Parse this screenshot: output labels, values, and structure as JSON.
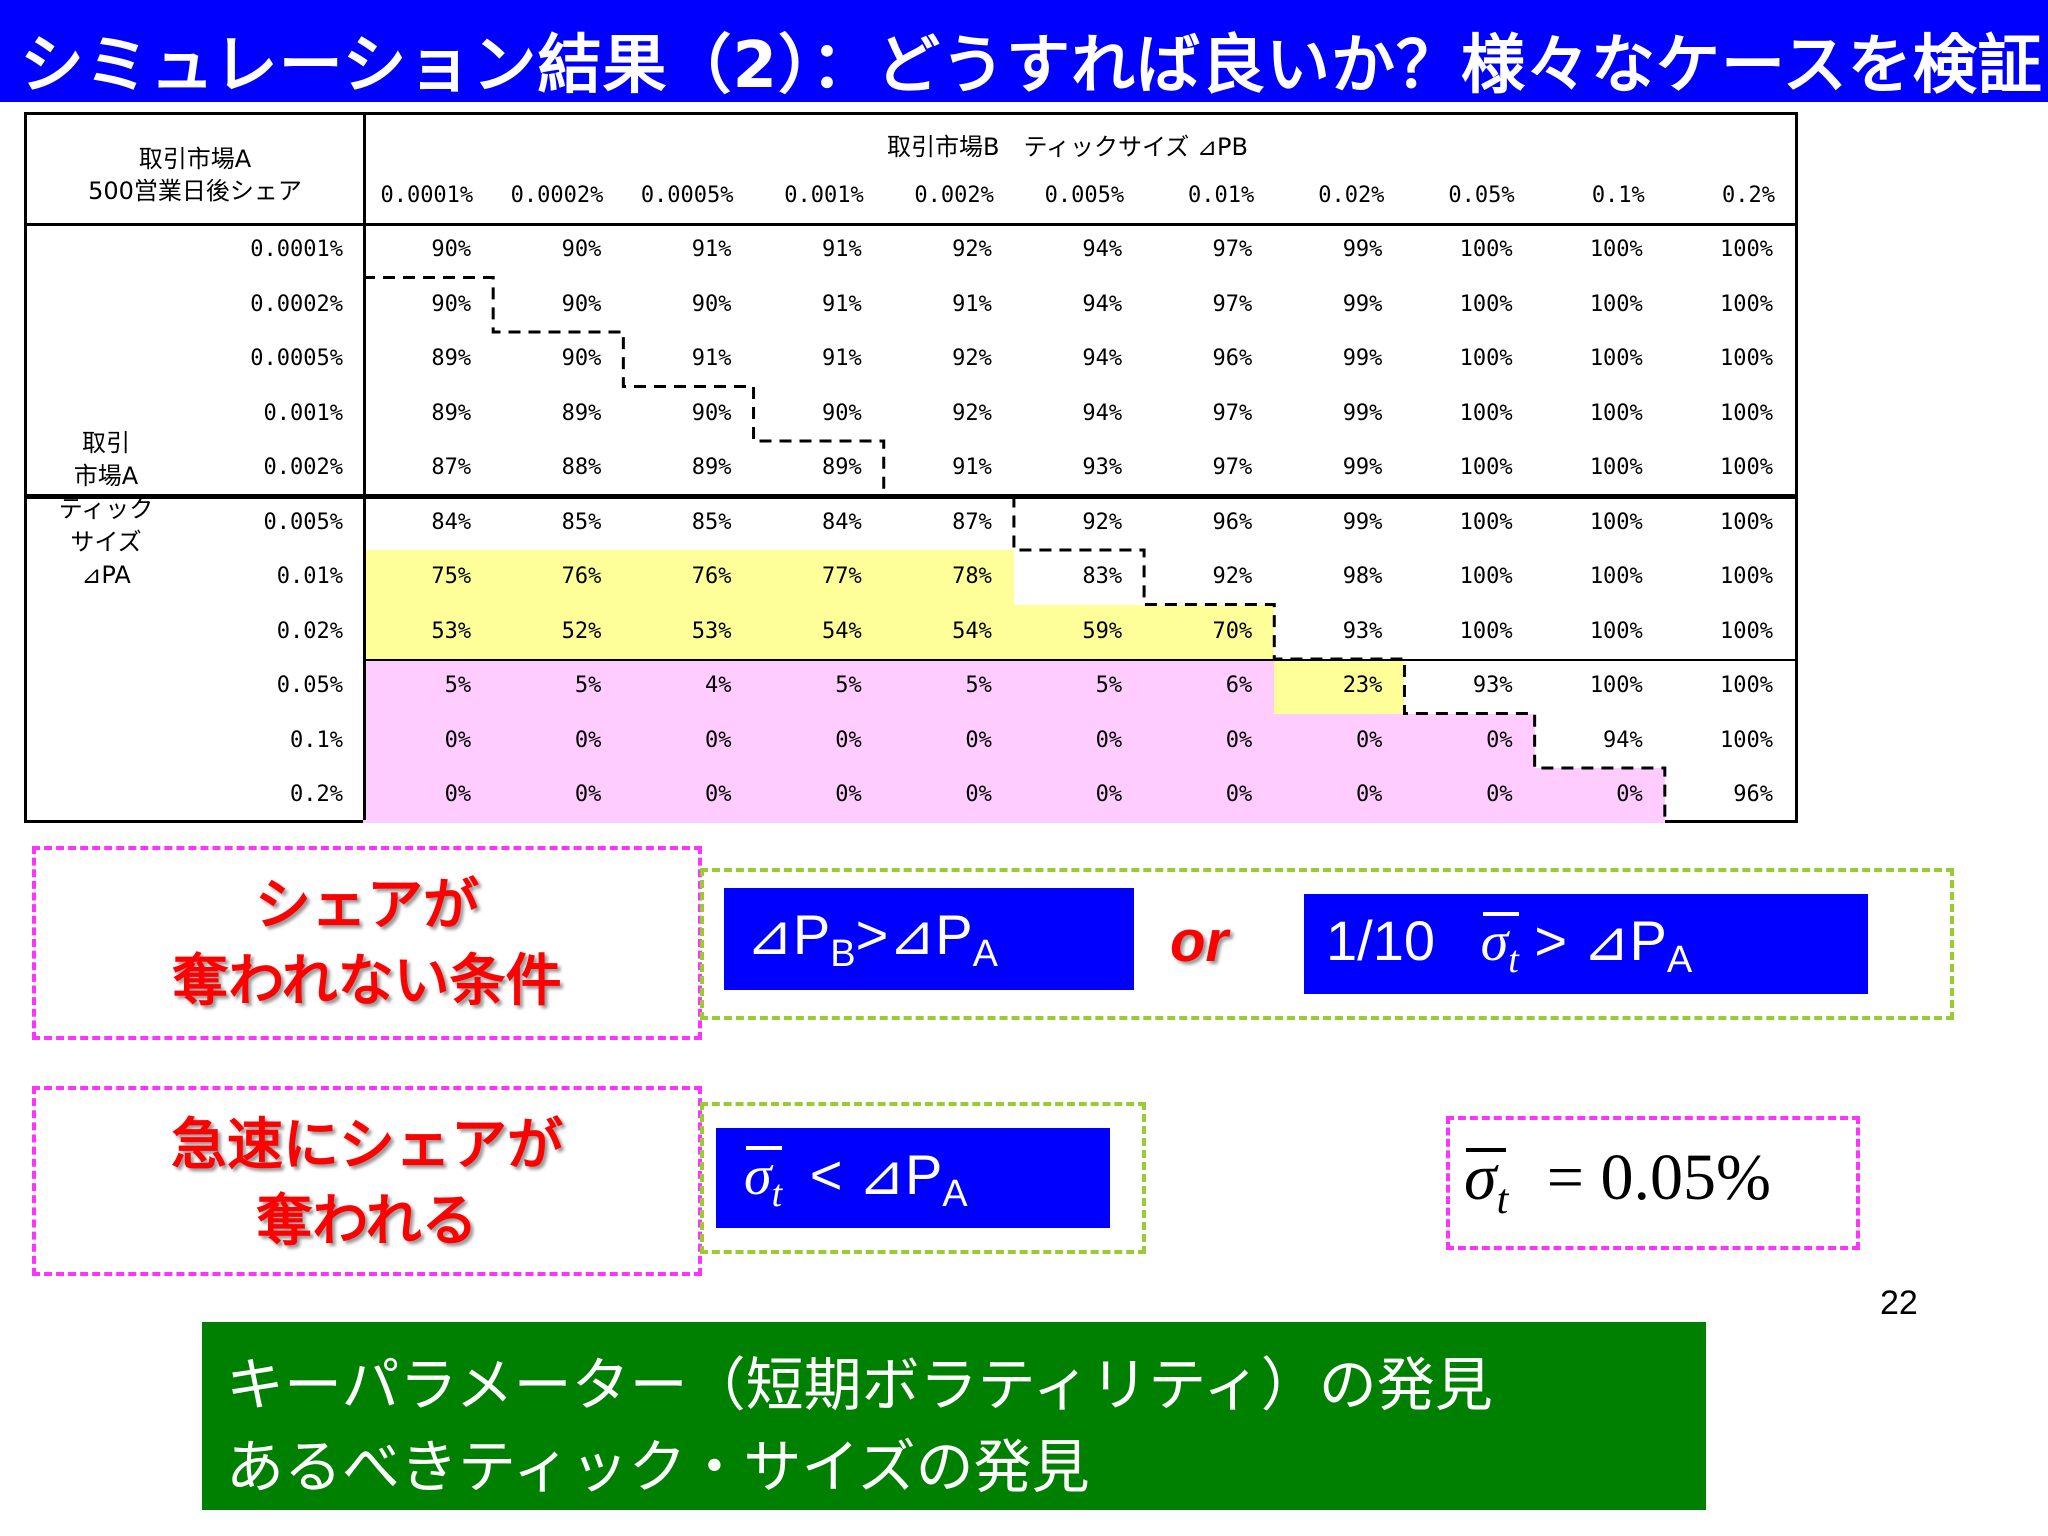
{
  "title": "シミュレーション結果（2）：どうすれば良いか？様々なケースを検証",
  "table": {
    "corner_line1": "取引市場A",
    "corner_line2": "500営業日後シェア",
    "col_group_label": "取引市場B　ティックサイズ ⊿PB",
    "row_group_label": [
      "取引",
      "市場A",
      "ティック",
      "サイズ",
      "⊿PA"
    ],
    "col_headers": [
      "0.0001%",
      "0.0002%",
      "0.0005%",
      "0.001%",
      "0.002%",
      "0.005%",
      "0.01%",
      "0.02%",
      "0.05%",
      "0.1%",
      "0.2%"
    ],
    "row_headers": [
      "0.0001%",
      "0.0002%",
      "0.0005%",
      "0.001%",
      "0.002%",
      "0.005%",
      "0.01%",
      "0.02%",
      "0.05%",
      "0.1%",
      "0.2%"
    ],
    "rows": [
      [
        "90%",
        "90%",
        "91%",
        "91%",
        "92%",
        "94%",
        "97%",
        "99%",
        "100%",
        "100%",
        "100%"
      ],
      [
        "90%",
        "90%",
        "90%",
        "91%",
        "91%",
        "94%",
        "97%",
        "99%",
        "100%",
        "100%",
        "100%"
      ],
      [
        "89%",
        "90%",
        "91%",
        "91%",
        "92%",
        "94%",
        "96%",
        "99%",
        "100%",
        "100%",
        "100%"
      ],
      [
        "89%",
        "89%",
        "90%",
        "90%",
        "92%",
        "94%",
        "97%",
        "99%",
        "100%",
        "100%",
        "100%"
      ],
      [
        "87%",
        "88%",
        "89%",
        "89%",
        "91%",
        "93%",
        "97%",
        "99%",
        "100%",
        "100%",
        "100%"
      ],
      [
        "84%",
        "85%",
        "85%",
        "84%",
        "87%",
        "92%",
        "96%",
        "99%",
        "100%",
        "100%",
        "100%"
      ],
      [
        "75%",
        "76%",
        "76%",
        "77%",
        "78%",
        "83%",
        "92%",
        "98%",
        "100%",
        "100%",
        "100%"
      ],
      [
        "53%",
        "52%",
        "53%",
        "54%",
        "54%",
        "59%",
        "70%",
        "93%",
        "100%",
        "100%",
        "100%"
      ],
      [
        "5%",
        "5%",
        "4%",
        "5%",
        "5%",
        "5%",
        "6%",
        "23%",
        "93%",
        "100%",
        "100%"
      ],
      [
        "0%",
        "0%",
        "0%",
        "0%",
        "0%",
        "0%",
        "0%",
        "0%",
        "0%",
        "94%",
        "100%"
      ],
      [
        "0%",
        "0%",
        "0%",
        "0%",
        "0%",
        "0%",
        "0%",
        "0%",
        "0%",
        "0%",
        "96%"
      ]
    ]
  },
  "condition1": {
    "label": [
      "シェアが",
      "奪われない条件"
    ],
    "formula_a": {
      "d": "⊿P",
      "sub_b": "B",
      "gt": ">",
      "sub_a": "A"
    },
    "or_text": "or",
    "formula_b": {
      "prefix": "1/10",
      "sigma": "σ",
      "sub_t": "t",
      "gt": ">",
      "d": "⊿P",
      "sub_a": "A"
    }
  },
  "condition2": {
    "label": [
      "急速にシェアが",
      "奪われる"
    ],
    "formula": {
      "sigma": "σ",
      "sub_t": "t",
      "lt": "<",
      "d": "⊿P",
      "sub_a": "A"
    }
  },
  "sigma_value": {
    "sigma": "σ",
    "sub_t": "t",
    "eq": "=",
    "value": "0.05%"
  },
  "page_number": "22",
  "summary": {
    "line1": "キーパラメーター（短期ボラティリティ）の発見",
    "line2": "あるべきティック・サイズの発見"
  },
  "colors": {
    "title_bg": "#0000ff",
    "yellow": "#ffff99",
    "pink": "#ffccff",
    "summary_bg": "#008000",
    "red": "#ff0000"
  }
}
